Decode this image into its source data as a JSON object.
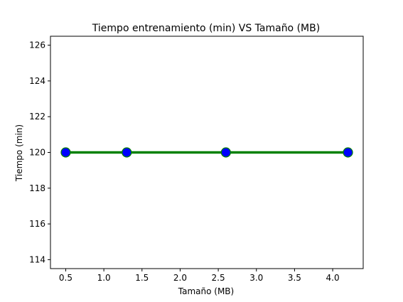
{
  "chart_data": {
    "type": "line",
    "title": "Tiempo entrenamiento (min) VS Tamaño (MB)",
    "xlabel": "Tamaño (MB)",
    "ylabel": "Tiempo (min)",
    "xlim": [
      0.3,
      4.4
    ],
    "ylim": [
      113.5,
      126.5
    ],
    "xticks": [
      0.5,
      1.0,
      1.5,
      2.0,
      2.5,
      3.0,
      3.5,
      4.0
    ],
    "xtick_labels": [
      "0.5",
      "1.0",
      "1.5",
      "2.0",
      "2.5",
      "3.0",
      "3.5",
      "4.0"
    ],
    "yticks": [
      114,
      116,
      118,
      120,
      122,
      124,
      126
    ],
    "ytick_labels": [
      "114",
      "116",
      "118",
      "120",
      "122",
      "124",
      "126"
    ],
    "grid": false,
    "series": [
      {
        "x": [
          0.5,
          1.3,
          2.6,
          4.2
        ],
        "y": [
          120,
          120,
          120,
          120
        ],
        "line_color": "#008000",
        "marker_color": "#0000ff",
        "marker_edge_color": "#008000"
      }
    ]
  }
}
